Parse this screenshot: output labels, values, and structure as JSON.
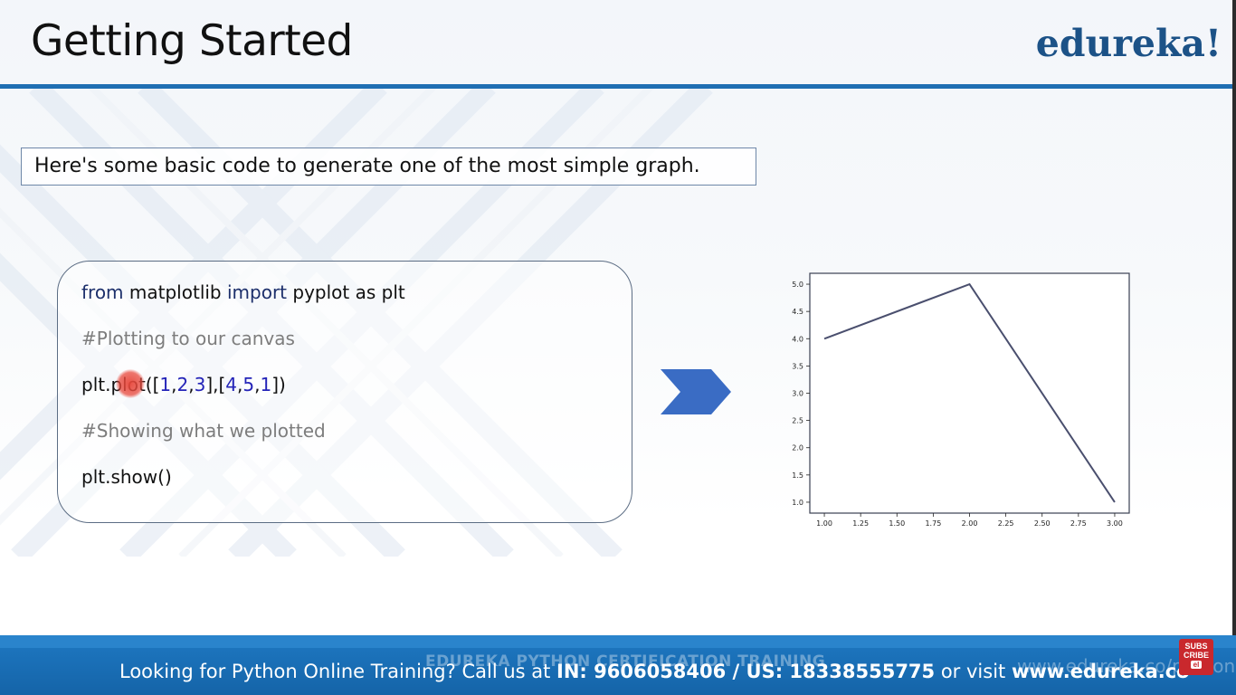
{
  "slide": {
    "title": "Getting Started",
    "logo": "edureka!",
    "intro": "Here's some basic code to generate one of the most simple graph."
  },
  "code": {
    "line1": {
      "kw1": "from",
      "mod": " matplotlib ",
      "kw2": "import",
      "rest": " pyplot as plt"
    },
    "line2": "#Plotting to our canvas",
    "line3": {
      "pre": "plt.plot([",
      "a1": "1",
      "c1": ",",
      "a2": "2",
      "c2": ",",
      "a3": "3",
      "mid": "],[",
      "b1": "4",
      "c3": ",",
      "b2": "5",
      "c4": ",",
      "b3": "1",
      "post": "])"
    },
    "line4": "#Showing what we plotted",
    "line5": "plt.show()"
  },
  "chart_data": {
    "type": "line",
    "x": [
      1,
      2,
      3
    ],
    "series": [
      {
        "values": [
          4,
          5,
          1
        ]
      }
    ],
    "xlim": [
      0.9,
      3.1
    ],
    "ylim": [
      0.8,
      5.2
    ],
    "xticks": [
      "1.00",
      "1.25",
      "1.50",
      "1.75",
      "2.00",
      "2.25",
      "2.50",
      "2.75",
      "3.00"
    ],
    "yticks": [
      "1.0",
      "1.5",
      "2.0",
      "2.5",
      "3.0",
      "3.5",
      "4.0",
      "4.5",
      "5.0"
    ],
    "line_color": "#4a4f6e",
    "grid": false
  },
  "footer": {
    "watermark_left": "EDUREKA PYTHON CERTIFICATION TRAINING",
    "watermark_right": "www.edureka.co/python",
    "text_pre": "Looking for Python Online Training? Call us at ",
    "in_label": "IN: 9606058406 / US: 18338555775",
    "text_mid": " or visit ",
    "website": "www.edureka.co",
    "subscribe_line1": "SUBS",
    "subscribe_line2": "CRIBE",
    "subscribe_logo": "el"
  },
  "colors": {
    "accent": "#1f6fb3",
    "logo": "#1c5287",
    "arrow": "#3a6cc4",
    "footer": "#1564a8"
  }
}
